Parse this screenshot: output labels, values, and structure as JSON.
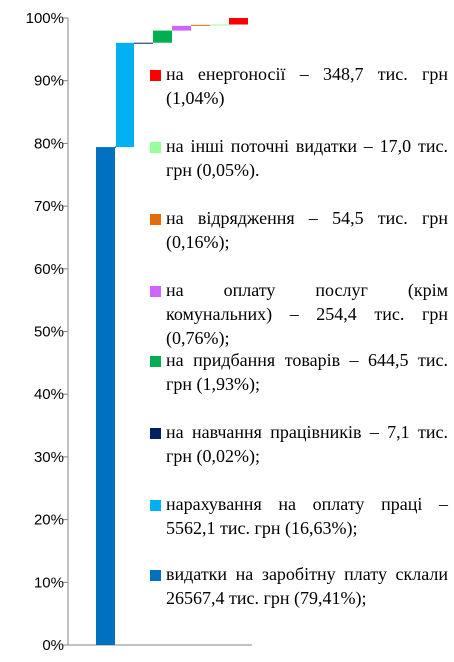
{
  "chart_data": {
    "type": "bar",
    "variant": "waterfall",
    "y_tick_labels": [
      "0%",
      "10%",
      "20%",
      "30%",
      "40%",
      "50%",
      "60%",
      "70%",
      "80%",
      "90%",
      "100%"
    ],
    "ylim": [
      0,
      100
    ],
    "grid": false,
    "legend_placement": "right",
    "series": [
      {
        "label": "видатки на заробітну плату склали 26567,4 тис. грн (79,41%);",
        "value": 79.41,
        "color": "#0070C0"
      },
      {
        "label": "нарахування на оплату праці – 5562,1 тис. грн (16,63%);",
        "value": 16.63,
        "color": "#00B0F0"
      },
      {
        "label": "на навчання працівників – 7,1 тис. грн (0,02%);",
        "value": 0.02,
        "color": "#002060"
      },
      {
        "label": "на придбання товарів – 644,5 тис. грн (1,93%);",
        "value": 1.93,
        "color": "#00B050"
      },
      {
        "label": "на оплату послуг (крім комунальних) – 254,4 тис. грн (0,76%);",
        "value": 0.76,
        "color": "#CC66FF"
      },
      {
        "label": "на відрядження – 54,5 тис. грн (0,16%);",
        "value": 0.16,
        "color": "#E26B0A"
      },
      {
        "label": "на інші поточні видатки – 17,0 тис. грн (0,05%).",
        "value": 0.05,
        "color": "#99FF99"
      },
      {
        "label": "на енергоносії – 348,7 тис. грн (1,04%)",
        "value": 1.04,
        "color": "#FF0000"
      }
    ]
  }
}
